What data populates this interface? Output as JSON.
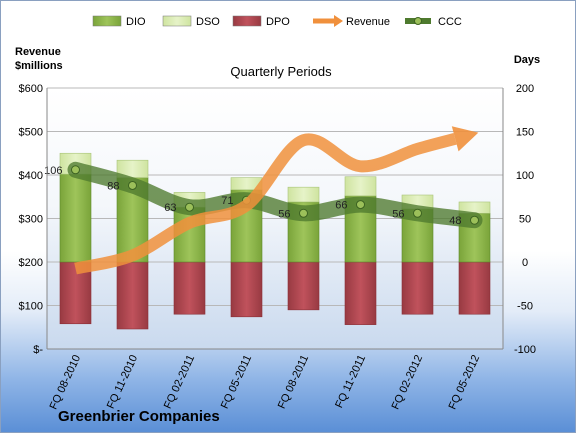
{
  "chart_data": {
    "type": "bar",
    "title": "Quarterly Periods",
    "company": "Greenbrier Companies",
    "left_axis_title": [
      "Revenue",
      "$millions"
    ],
    "right_axis_title": "Days",
    "left_axis": {
      "ylim": [
        0,
        600
      ],
      "ticks": [
        "$-",
        "$100",
        "$200",
        "$300",
        "$400",
        "$500",
        "$600"
      ]
    },
    "right_axis": {
      "ylim": [
        -100,
        200
      ],
      "ticks": [
        "-100",
        "-50",
        "0",
        "50",
        "100",
        "150",
        "200"
      ]
    },
    "categories": [
      "FQ 08-2010",
      "FQ 11-2010",
      "FQ 02-2011",
      "FQ 05-2011",
      "FQ 08-2011",
      "FQ 11-2011",
      "FQ 02-2012",
      "FQ 05-2012"
    ],
    "legend": [
      "DIO",
      "DSO",
      "DPO",
      "Revenue",
      "CCC"
    ],
    "colors": {
      "DIO": "#8cb448",
      "DSO": "#d9ecb0",
      "DPO": "#b0444e",
      "Revenue": "#f0903c",
      "CCC": "#4e7a2e"
    },
    "series": [
      {
        "name": "DIO",
        "axis": "days",
        "values": [
          101,
          97,
          63,
          83,
          69,
          76,
          61,
          56
        ]
      },
      {
        "name": "DSO",
        "axis": "days",
        "values": [
          24,
          20,
          17,
          14,
          17,
          22,
          16,
          13
        ]
      },
      {
        "name": "DPO",
        "axis": "days",
        "values": [
          -71,
          -77,
          -60,
          -63,
          -55,
          -72,
          -60,
          -60
        ]
      },
      {
        "name": "Revenue",
        "axis": "revenue",
        "values": [
          185,
          215,
          290,
          330,
          480,
          420,
          460,
          495
        ]
      },
      {
        "name": "CCC",
        "axis": "days",
        "values": [
          106,
          88,
          63,
          71,
          56,
          66,
          56,
          48
        ],
        "labels": [
          "106",
          "88",
          "63",
          "71",
          "56",
          "66",
          "56",
          "48"
        ]
      }
    ],
    "grid": true,
    "legend_position": "top"
  }
}
